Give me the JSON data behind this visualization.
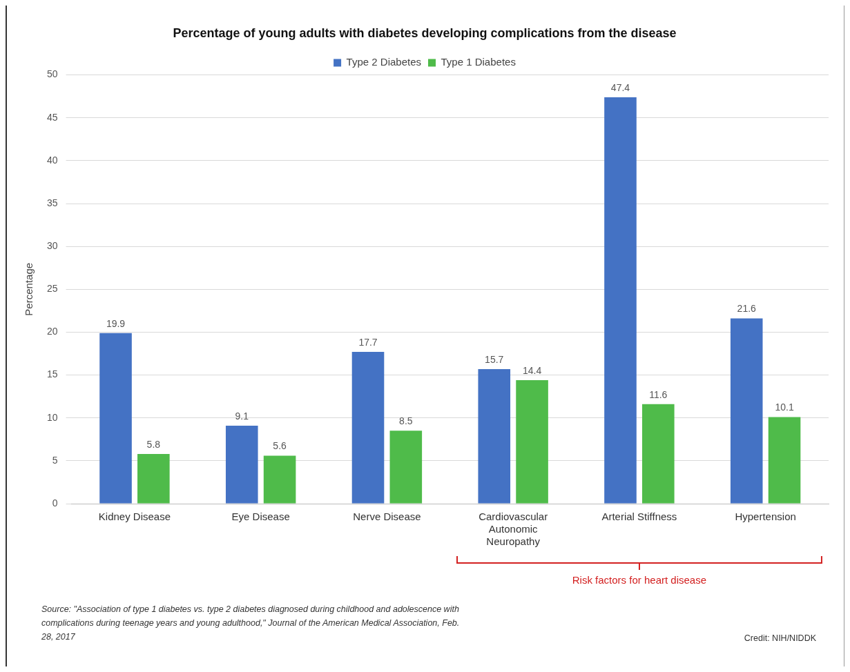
{
  "chart_data": {
    "type": "bar",
    "title": "Percentage of young adults with diabetes developing complications from the disease",
    "ylabel": "Percentage",
    "categories": [
      "Kidney Disease",
      "Eye Disease",
      "Nerve Disease",
      "Cardiovascular Autonomic Neuropathy",
      "Arterial Stiffness",
      "Hypertension"
    ],
    "series": [
      {
        "name": "Type 2 Diabetes",
        "color": "#4472c4",
        "values": [
          19.9,
          9.1,
          17.7,
          15.7,
          47.4,
          21.6
        ]
      },
      {
        "name": "Type 1 Diabetes",
        "color": "#4fbb4a",
        "values": [
          5.8,
          5.6,
          8.5,
          14.4,
          11.6,
          10.1
        ]
      }
    ],
    "ylim": [
      0,
      50
    ],
    "yticks": [
      0,
      5,
      10,
      15,
      20,
      25,
      30,
      35,
      40,
      45,
      50
    ],
    "grid": "y",
    "legend": "top",
    "data_labels": true,
    "annotations": [
      "Risk factors for heart disease",
      "Source: \"Association of type 1 diabetes vs. type 2 diabetes diagnosed during childhood and adolescence with complications during teenage years and young adulthood,\" Journal of the American Medical Association, Feb. 28, 2017",
      "Credit: NIH/NIDDK"
    ]
  }
}
